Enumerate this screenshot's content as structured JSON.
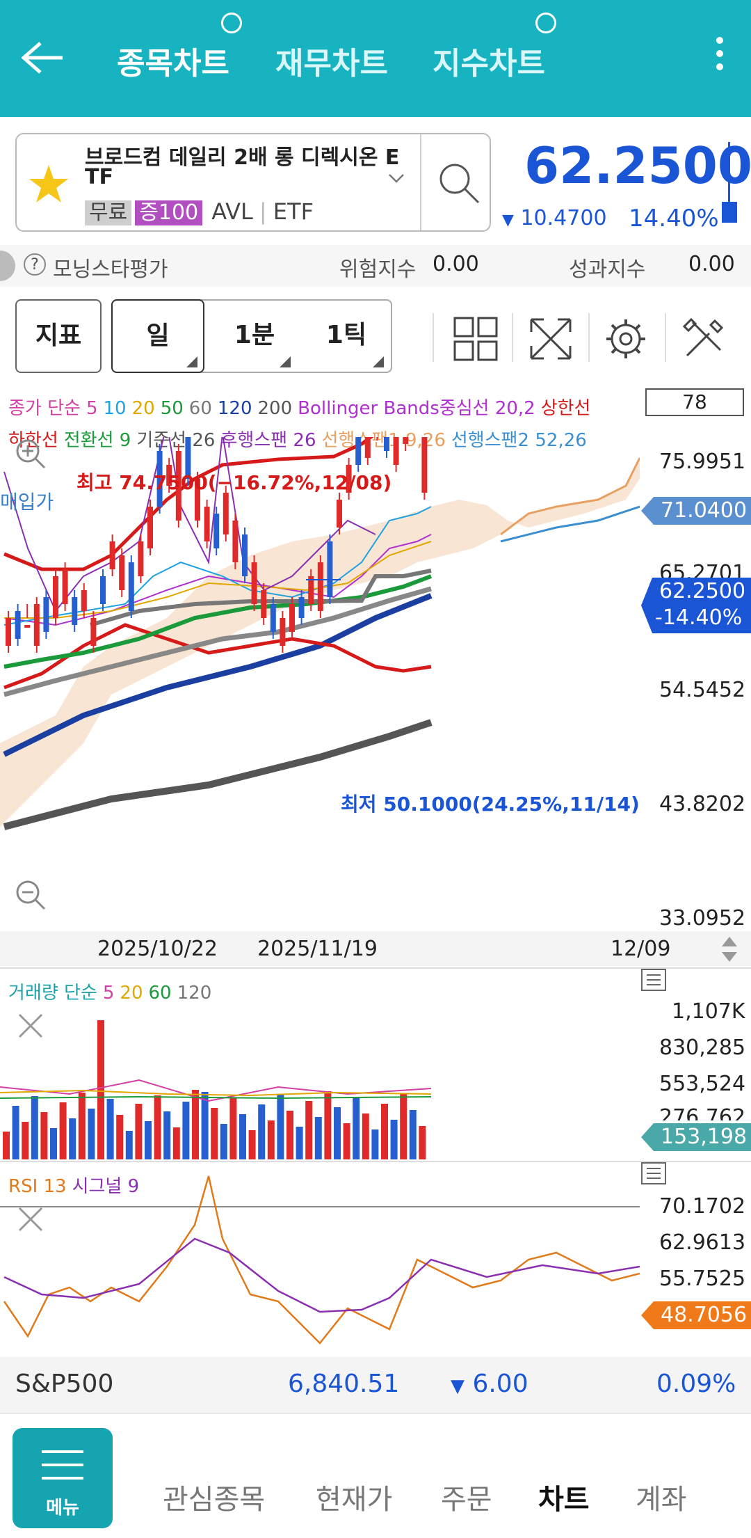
{
  "header": {
    "tabs": [
      {
        "label": "종목차트",
        "active": true
      },
      {
        "label": "재무차트",
        "active": false
      },
      {
        "label": "지수차트",
        "active": false
      }
    ]
  },
  "stock": {
    "name_line1": "브로드컴 데일리 2배 롱 디렉시온 E",
    "name_line2": "TF",
    "chip_free": "무료",
    "chip_margin": "증100",
    "ticker": "AVL",
    "type": "ETF",
    "price": "62.2500",
    "change": "10.4700",
    "change_pct": "14.40%"
  },
  "info": {
    "morningstar": "모닝스타평가",
    "risk_label": "위험지수",
    "risk_value": "0.00",
    "perf_label": "성과지수",
    "perf_value": "0.00"
  },
  "toolbar": {
    "indicator": "지표",
    "periods": [
      "일",
      "1분",
      "1틱"
    ]
  },
  "chart": {
    "legend1": [
      {
        "text": "종가 단순",
        "color": "#d43fa3"
      },
      {
        "text": "5",
        "color": "#d43fa3"
      },
      {
        "text": "10",
        "color": "#1fa3e0"
      },
      {
        "text": "20",
        "color": "#e0a800"
      },
      {
        "text": "50",
        "color": "#1a9a3a"
      },
      {
        "text": "60",
        "color": "#777777"
      },
      {
        "text": "120",
        "color": "#1a3fa0"
      },
      {
        "text": "200",
        "color": "#555555"
      },
      {
        "text": "Bollinger Bands중심선 20,2",
        "color": "#b02fd0"
      },
      {
        "text": "상한선",
        "color": "#d61a1a"
      }
    ],
    "legend2": [
      {
        "text": "하한선",
        "color": "#d61a1a"
      },
      {
        "text": "전환선 9",
        "color": "#1a9a3a"
      },
      {
        "text": "기준선 26",
        "color": "#555555"
      },
      {
        "text": "후행스팬 26",
        "color": "#8a2fb0"
      },
      {
        "text": "선행스팬1 9,26",
        "color": "#e8a060"
      },
      {
        "text": "선행스팬2 52,26",
        "color": "#3a8fd0"
      }
    ],
    "period_box": "78",
    "y_labels": [
      "75.9951",
      "65.2701",
      "54.5452",
      "43.8202",
      "33.0952"
    ],
    "purchase_label": "매입가",
    "purchase_price": "71.0400",
    "current_tag_price": "62.2500",
    "current_tag_pct": "-14.40%",
    "high_annotation": "최고 74.7500(−16.72%,12/08)",
    "low_annotation": "최저 50.1000(24.25%,11/14)",
    "dates": [
      "2025/10/22",
      "2025/11/19",
      "12/09"
    ]
  },
  "volume": {
    "legend": [
      {
        "text": "거래량 단순",
        "color": "#1fa3a8"
      },
      {
        "text": "5",
        "color": "#d43fa3"
      },
      {
        "text": "20",
        "color": "#e0a800"
      },
      {
        "text": "60",
        "color": "#1a9a3a"
      },
      {
        "text": "120",
        "color": "#777777"
      }
    ],
    "y_labels": [
      "1,107K",
      "830,285",
      "553,524",
      "276,762"
    ],
    "current": "153,198"
  },
  "rsi": {
    "legend": [
      {
        "text": "RSI 13",
        "color": "#e07a1a"
      },
      {
        "text": "시그널 9",
        "color": "#8a2fb0"
      }
    ],
    "y_labels": [
      "70.1702",
      "62.9613",
      "55.7525"
    ],
    "current": "48.7056"
  },
  "index_bar": {
    "name": "S&P500",
    "value": "6,840.51",
    "change": "6.00",
    "pct": "0.09%"
  },
  "nav": {
    "menu": "메뉴",
    "items": [
      "관심종목",
      "현재가",
      "주문",
      "차트",
      "계좌"
    ],
    "active": "차트"
  },
  "colors": {
    "header": "#17b3c1",
    "price_blue": "#1a55d6",
    "up_red": "#e02a2a",
    "down_blue": "#2660d0"
  }
}
